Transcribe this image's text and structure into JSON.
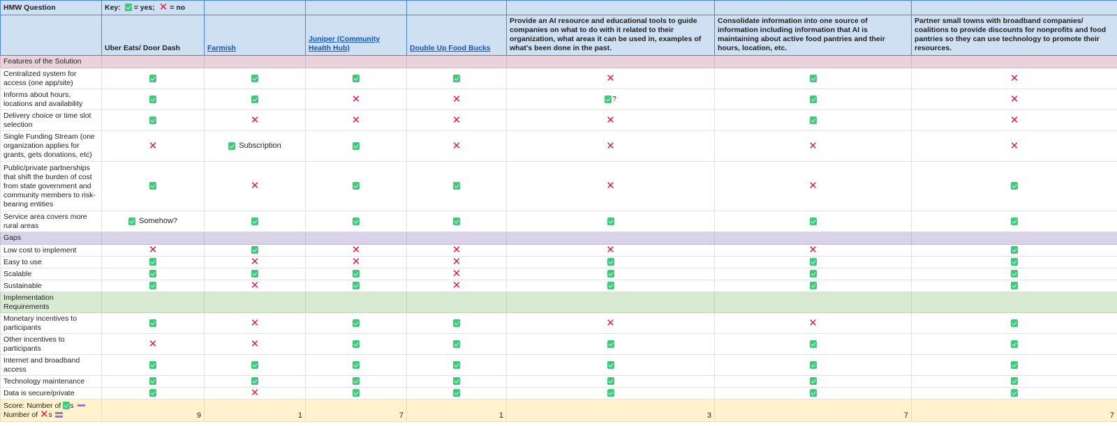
{
  "header": {
    "title": "HMW Question",
    "key": {
      "label": "Key:",
      "yes_text": "= yes;",
      "no_text": "= no",
      "yes_icon": "check-icon",
      "no_icon": "cross-icon"
    },
    "columns": [
      {
        "label": "Uber Eats/ Door Dash",
        "link": false
      },
      {
        "label": "Farmish",
        "link": true
      },
      {
        "label": "Juniper (Community Health Hub)",
        "link": true
      },
      {
        "label": "Double Up Food Bucks",
        "link": true
      },
      {
        "label": "Provide an AI resource and educational tools to guide companies on what to do with it related to their organization, what areas it can be used in, examples of what's been done in the past.",
        "link": false
      },
      {
        "label": "Consolidate information into one source of information including information that AI is maintaining about active food pantries and their hours, location, etc.",
        "link": false
      },
      {
        "label": "Partner small towns with broadband companies/ coalitions to provide discounts for nonprofits and food pantries so they can use technology to promote their resources.",
        "link": false
      }
    ]
  },
  "colors": {
    "header_bg": "#cfe0f3",
    "header_border": "#4a86e8",
    "section_features": "#ead1dc",
    "section_gaps": "#d9d2e9",
    "section_implementation": "#d9ead3",
    "score_bg": "#fff2cc",
    "check": "#3fc97a",
    "cross": "#e8174b",
    "link": "#1155cc"
  },
  "sections": [
    {
      "title": "Features of the Solution",
      "rows": [
        {
          "label": "Centralized system for access (one app/site)",
          "values": [
            "yes",
            "yes",
            "yes",
            "yes",
            "no",
            "yes",
            "no"
          ],
          "notes": [
            "",
            "",
            "",
            "",
            "",
            "",
            ""
          ]
        },
        {
          "label": "Informs about hours, locations and availability",
          "values": [
            "yes",
            "yes",
            "no",
            "no",
            "yes?",
            "yes",
            "no"
          ],
          "notes": [
            "",
            "",
            "",
            "",
            "",
            "",
            ""
          ]
        },
        {
          "label": "Delivery choice or time slot selection",
          "values": [
            "yes",
            "no",
            "no",
            "no",
            "no",
            "yes",
            "no"
          ],
          "notes": [
            "",
            "",
            "",
            "",
            "",
            "",
            ""
          ]
        },
        {
          "label": "Single Funding Stream (one organization applies for grants, gets donations, etc)",
          "values": [
            "no",
            "yes",
            "yes",
            "no",
            "no",
            "no",
            "no"
          ],
          "notes": [
            "",
            "Subscription",
            "",
            "",
            "",
            "",
            ""
          ]
        },
        {
          "label": "Public/private partnerships that shift the burden of cost from state government and community members to risk-bearing entities",
          "values": [
            "yes",
            "no",
            "yes",
            "yes",
            "no",
            "no",
            "yes"
          ],
          "notes": [
            "",
            "",
            "",
            "",
            "",
            "",
            ""
          ]
        },
        {
          "label": "Service area covers more rural areas",
          "values": [
            "yes",
            "yes",
            "yes",
            "yes",
            "yes",
            "yes",
            "yes"
          ],
          "notes": [
            "Somehow?",
            "",
            "",
            "",
            "",
            "",
            ""
          ]
        }
      ]
    },
    {
      "title": "Gaps",
      "rows": [
        {
          "label": "Low cost to implement",
          "values": [
            "no",
            "yes",
            "no",
            "no",
            "no",
            "no",
            "yes"
          ],
          "notes": [
            "",
            "",
            "",
            "",
            "",
            "",
            ""
          ]
        },
        {
          "label": "Easy to use",
          "values": [
            "yes",
            "no",
            "no",
            "no",
            "yes",
            "yes",
            "yes"
          ],
          "notes": [
            "",
            "",
            "",
            "",
            "",
            "",
            ""
          ]
        },
        {
          "label": "Scalable",
          "values": [
            "yes",
            "yes",
            "yes",
            "no",
            "yes",
            "yes",
            "yes"
          ],
          "notes": [
            "",
            "",
            "",
            "",
            "",
            "",
            ""
          ]
        },
        {
          "label": "Sustainable",
          "values": [
            "yes",
            "no",
            "yes",
            "no",
            "yes",
            "yes",
            "yes"
          ],
          "notes": [
            "",
            "",
            "",
            "",
            "",
            "",
            ""
          ]
        }
      ]
    },
    {
      "title": "Implementation Requirements",
      "rows": [
        {
          "label": "Monetary incentives to participants",
          "values": [
            "yes",
            "no",
            "yes",
            "yes",
            "no",
            "no",
            "yes"
          ],
          "notes": [
            "",
            "",
            "",
            "",
            "",
            "",
            ""
          ]
        },
        {
          "label": "Other incentives to participants",
          "values": [
            "no",
            "no",
            "yes",
            "yes",
            "yes",
            "yes",
            "yes"
          ],
          "notes": [
            "",
            "",
            "",
            "",
            "",
            "",
            ""
          ]
        },
        {
          "label": "Internet and broadband access",
          "values": [
            "yes",
            "yes",
            "yes",
            "yes",
            "yes",
            "yes",
            "yes"
          ],
          "notes": [
            "",
            "",
            "",
            "",
            "",
            "",
            ""
          ]
        },
        {
          "label": "Technology maintenance",
          "values": [
            "yes",
            "yes",
            "yes",
            "yes",
            "yes",
            "yes",
            "yes"
          ],
          "notes": [
            "",
            "",
            "",
            "",
            "",
            "",
            ""
          ]
        },
        {
          "label": "Data is secure/private",
          "values": [
            "yes",
            "no",
            "yes",
            "yes",
            "yes",
            "yes",
            "yes"
          ],
          "notes": [
            "",
            "",
            "",
            "",
            "",
            "",
            ""
          ]
        }
      ]
    }
  ],
  "score": {
    "label_part1": "Score: Number of",
    "label_part2": "s",
    "label_part3": "Number of",
    "label_part4": "s",
    "values": [
      "9",
      "1",
      "7",
      "1",
      "3",
      "7",
      "7"
    ]
  }
}
